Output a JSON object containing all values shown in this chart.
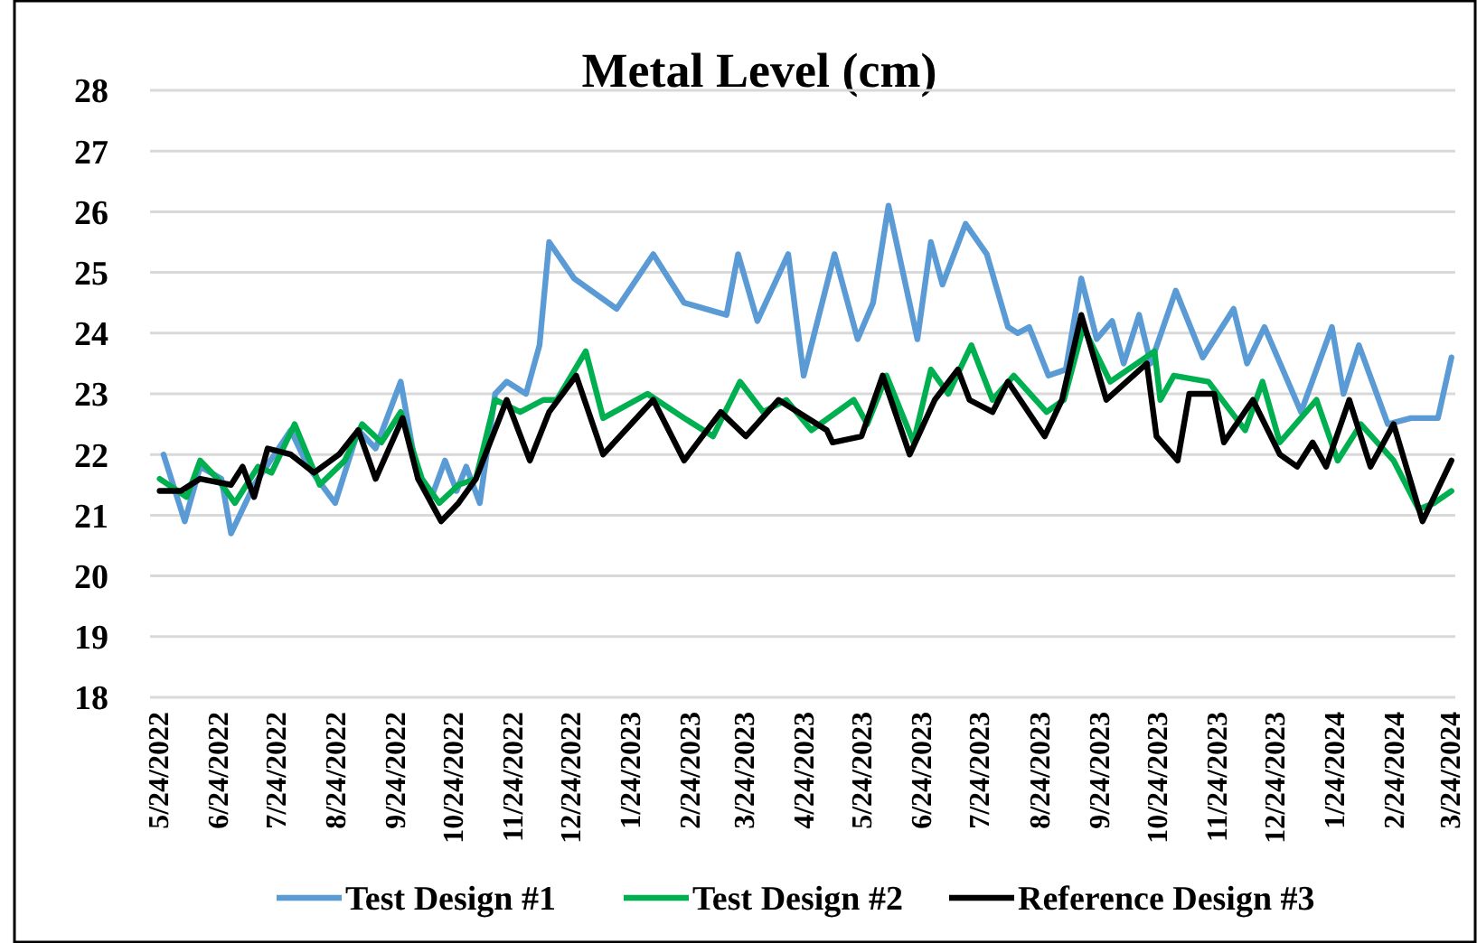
{
  "chart_data": {
    "type": "line",
    "title": "Metal Level (cm)",
    "xlim": [
      "2022-05-20",
      "2024-03-27"
    ],
    "ylim": [
      18,
      28
    ],
    "yticks": [
      18,
      19,
      20,
      21,
      22,
      23,
      24,
      25,
      26,
      27,
      28
    ],
    "grid": "y",
    "legend": "bottom",
    "line_style": "solid",
    "marker": "none",
    "xticks": [
      {
        "value": "2022-05-24",
        "label": "5/24/2022"
      },
      {
        "value": "2022-06-24",
        "label": "6/24/2022"
      },
      {
        "value": "2022-07-24",
        "label": "7/24/2022"
      },
      {
        "value": "2022-08-24",
        "label": "8/24/2022"
      },
      {
        "value": "2022-09-24",
        "label": "9/24/2022"
      },
      {
        "value": "2022-10-24",
        "label": "10/24/2022"
      },
      {
        "value": "2022-11-24",
        "label": "11/24/2022"
      },
      {
        "value": "2022-12-24",
        "label": "12/24/2022"
      },
      {
        "value": "2023-01-24",
        "label": "1/24/2023"
      },
      {
        "value": "2023-02-24",
        "label": "2/24/2023"
      },
      {
        "value": "2023-03-24",
        "label": "3/24/2023"
      },
      {
        "value": "2023-04-24",
        "label": "4/24/2023"
      },
      {
        "value": "2023-05-24",
        "label": "5/24/2023"
      },
      {
        "value": "2023-06-24",
        "label": "6/24/2023"
      },
      {
        "value": "2023-07-24",
        "label": "7/24/2023"
      },
      {
        "value": "2023-08-24",
        "label": "8/24/2023"
      },
      {
        "value": "2023-09-24",
        "label": "9/24/2023"
      },
      {
        "value": "2023-10-24",
        "label": "10/24/2023"
      },
      {
        "value": "2023-11-24",
        "label": "11/24/2023"
      },
      {
        "value": "2023-12-24",
        "label": "12/24/2023"
      },
      {
        "value": "2024-01-24",
        "label": "1/24/2024"
      },
      {
        "value": "2024-02-24",
        "label": "2/24/2024"
      },
      {
        "value": "2024-03-24",
        "label": "3/24/2024"
      }
    ],
    "series": [
      {
        "name": "Test Design #1",
        "color": "#5b9bd5",
        "x": [
          "2022-05-27",
          "2022-06-07",
          "2022-06-15",
          "2022-06-26",
          "2022-07-01",
          "2022-07-13",
          "2022-08-01",
          "2022-08-10",
          "2022-08-24",
          "2022-09-05",
          "2022-09-14",
          "2022-09-27",
          "2022-10-06",
          "2022-10-13",
          "2022-10-20",
          "2022-10-26",
          "2022-10-31",
          "2022-11-07",
          "2022-11-15",
          "2022-11-21",
          "2022-12-01",
          "2022-12-08",
          "2022-12-13",
          "2022-12-26",
          "2023-01-17",
          "2023-02-05",
          "2023-02-21",
          "2023-03-15",
          "2023-03-21",
          "2023-03-31",
          "2023-04-16",
          "2023-04-24",
          "2023-05-10",
          "2023-05-22",
          "2023-05-30",
          "2023-06-07",
          "2023-06-22",
          "2023-06-29",
          "2023-07-05",
          "2023-07-17",
          "2023-07-28",
          "2023-08-08",
          "2023-08-13",
          "2023-08-19",
          "2023-08-29",
          "2023-09-07",
          "2023-09-15",
          "2023-09-23",
          "2023-10-01",
          "2023-10-07",
          "2023-10-15",
          "2023-10-21",
          "2023-11-03",
          "2023-11-17",
          "2023-12-03",
          "2023-12-10",
          "2023-12-19",
          "2024-01-07",
          "2024-01-23",
          "2024-01-29",
          "2024-02-06",
          "2024-02-21",
          "2024-03-04",
          "2024-03-18",
          "2024-03-25"
        ],
        "values": [
          22.0,
          20.9,
          21.8,
          21.6,
          20.7,
          21.5,
          22.4,
          21.8,
          21.2,
          22.4,
          22.1,
          23.2,
          21.6,
          21.3,
          21.9,
          21.4,
          21.8,
          21.2,
          23.0,
          23.2,
          23.0,
          23.8,
          25.5,
          24.9,
          24.4,
          25.3,
          24.5,
          24.3,
          25.3,
          24.2,
          25.3,
          23.3,
          25.3,
          23.9,
          24.5,
          26.1,
          23.9,
          25.5,
          24.8,
          25.8,
          25.3,
          24.1,
          24.0,
          24.1,
          23.3,
          23.4,
          24.9,
          23.9,
          24.2,
          23.5,
          24.3,
          23.5,
          24.7,
          23.6,
          24.4,
          23.5,
          24.1,
          22.7,
          24.1,
          23.0,
          23.8,
          22.5,
          22.6,
          22.6,
          23.6
        ]
      },
      {
        "name": "Test Design #2",
        "color": "#00b050",
        "x": [
          "2022-05-25",
          "2022-06-08",
          "2022-06-15",
          "2022-06-24",
          "2022-07-03",
          "2022-07-15",
          "2022-07-22",
          "2022-08-03",
          "2022-08-16",
          "2022-08-29",
          "2022-09-07",
          "2022-09-17",
          "2022-09-27",
          "2022-10-08",
          "2022-10-17",
          "2022-10-27",
          "2022-11-05",
          "2022-11-15",
          "2022-11-28",
          "2022-12-10",
          "2022-12-17",
          "2023-01-01",
          "2023-01-10",
          "2023-02-02",
          "2023-02-21",
          "2023-03-08",
          "2023-03-22",
          "2023-04-03",
          "2023-04-15",
          "2023-04-28",
          "2023-05-20",
          "2023-05-27",
          "2023-06-06",
          "2023-06-20",
          "2023-06-29",
          "2023-07-08",
          "2023-07-20",
          "2023-07-31",
          "2023-08-11",
          "2023-08-28",
          "2023-09-06",
          "2023-09-16",
          "2023-09-30",
          "2023-10-23",
          "2023-10-26",
          "2023-11-02",
          "2023-11-20",
          "2023-12-09",
          "2023-12-18",
          "2023-12-27",
          "2024-01-15",
          "2024-01-26",
          "2024-02-07",
          "2024-02-24",
          "2024-03-08",
          "2024-03-16",
          "2024-03-25"
        ],
        "values": [
          21.6,
          21.3,
          21.9,
          21.6,
          21.2,
          21.8,
          21.7,
          22.5,
          21.5,
          21.9,
          22.5,
          22.2,
          22.7,
          21.6,
          21.2,
          21.5,
          21.6,
          22.9,
          22.7,
          22.9,
          22.9,
          23.7,
          22.6,
          23.0,
          22.6,
          22.3,
          23.2,
          22.7,
          22.9,
          22.4,
          22.9,
          22.5,
          23.3,
          22.2,
          23.4,
          23.0,
          23.8,
          22.9,
          23.3,
          22.7,
          22.9,
          24.1,
          23.2,
          23.7,
          22.9,
          23.3,
          23.2,
          22.4,
          23.2,
          22.2,
          22.9,
          21.9,
          22.5,
          21.9,
          21.1,
          21.2,
          21.4
        ]
      },
      {
        "name": "Reference Design #3",
        "color": "#000000",
        "x": [
          "2022-05-25",
          "2022-06-05",
          "2022-06-15",
          "2022-07-01",
          "2022-07-07",
          "2022-07-13",
          "2022-07-20",
          "2022-08-01",
          "2022-08-13",
          "2022-08-26",
          "2022-09-05",
          "2022-09-14",
          "2022-09-28",
          "2022-10-06",
          "2022-10-18",
          "2022-10-27",
          "2022-11-05",
          "2022-11-21",
          "2022-12-03",
          "2022-12-13",
          "2022-12-27",
          "2023-01-10",
          "2023-02-05",
          "2023-02-21",
          "2023-03-12",
          "2023-03-25",
          "2023-04-11",
          "2023-05-06",
          "2023-05-09",
          "2023-05-24",
          "2023-06-04",
          "2023-06-18",
          "2023-07-01",
          "2023-07-13",
          "2023-07-19",
          "2023-07-31",
          "2023-08-08",
          "2023-08-27",
          "2023-09-05",
          "2023-09-15",
          "2023-09-28",
          "2023-10-19",
          "2023-10-24",
          "2023-11-04",
          "2023-11-10",
          "2023-11-23",
          "2023-11-28",
          "2023-12-13",
          "2023-12-27",
          "2024-01-05",
          "2024-01-13",
          "2024-01-20",
          "2024-02-01",
          "2024-02-12",
          "2024-02-24",
          "2024-03-10",
          "2024-03-25"
        ],
        "values": [
          21.4,
          21.4,
          21.6,
          21.5,
          21.8,
          21.3,
          22.1,
          22.0,
          21.7,
          22.0,
          22.4,
          21.6,
          22.6,
          21.6,
          20.9,
          21.2,
          21.6,
          22.9,
          21.9,
          22.7,
          23.3,
          22.0,
          22.9,
          21.9,
          22.7,
          22.3,
          22.9,
          22.4,
          22.2,
          22.3,
          23.3,
          22.0,
          22.9,
          23.4,
          22.9,
          22.7,
          23.2,
          22.3,
          22.9,
          24.3,
          22.9,
          23.5,
          22.3,
          21.9,
          23.0,
          23.0,
          22.2,
          22.9,
          22.0,
          21.8,
          22.2,
          21.8,
          22.9,
          21.8,
          22.5,
          20.9,
          21.9
        ]
      }
    ]
  }
}
